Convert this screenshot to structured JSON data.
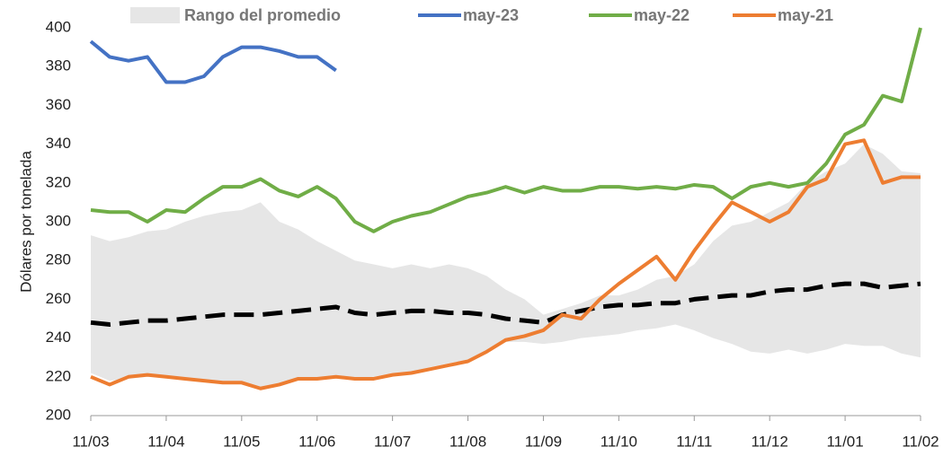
{
  "chart_data": {
    "type": "line",
    "ylabel": "Dólares por tonelada",
    "x": [
      0,
      0.25,
      0.5,
      0.75,
      1,
      1.25,
      1.5,
      1.75,
      2,
      2.25,
      2.5,
      2.75,
      3,
      3.25,
      3.5,
      3.75,
      4,
      4.25,
      4.5,
      4.75,
      5,
      5.25,
      5.5,
      5.75,
      6,
      6.25,
      6.5,
      6.75,
      7,
      7.25,
      7.5,
      7.75,
      8,
      8.25,
      8.5,
      8.75,
      9,
      9.25,
      9.5,
      9.75,
      10,
      10.25,
      10.5,
      10.75,
      11
    ],
    "xlim": [
      0,
      11
    ],
    "xticks": [
      {
        "value": 0,
        "label": "11/03"
      },
      {
        "value": 1,
        "label": "11/04"
      },
      {
        "value": 2,
        "label": "11/05"
      },
      {
        "value": 3,
        "label": "11/06"
      },
      {
        "value": 4,
        "label": "11/07"
      },
      {
        "value": 5,
        "label": "11/08"
      },
      {
        "value": 6,
        "label": "11/09"
      },
      {
        "value": 7,
        "label": "11/10"
      },
      {
        "value": 8,
        "label": "11/11"
      },
      {
        "value": 9,
        "label": "11/12"
      },
      {
        "value": 10,
        "label": "11/01"
      },
      {
        "value": 11,
        "label": "11/02"
      }
    ],
    "ylim": [
      200,
      400
    ],
    "yticks": [
      200,
      220,
      240,
      260,
      280,
      300,
      320,
      340,
      360,
      380,
      400
    ],
    "range": {
      "name": "Rango del promedio",
      "color": "#e6e6e6",
      "high": [
        293,
        290,
        292,
        295,
        296,
        300,
        303,
        305,
        306,
        310,
        300,
        296,
        290,
        285,
        280,
        278,
        276,
        278,
        276,
        278,
        276,
        272,
        265,
        260,
        252,
        255,
        258,
        262,
        262,
        265,
        270,
        272,
        278,
        290,
        298,
        300,
        305,
        310,
        320,
        326,
        330,
        340,
        335,
        326,
        325
      ],
      "low": [
        222,
        218,
        219,
        220,
        220,
        219,
        218,
        217,
        217,
        214,
        216,
        219,
        219,
        220,
        219,
        220,
        222,
        222,
        225,
        227,
        229,
        233,
        238,
        238,
        237,
        238,
        240,
        241,
        242,
        244,
        245,
        247,
        244,
        240,
        237,
        233,
        232,
        234,
        232,
        234,
        237,
        236,
        236,
        232,
        230
      ]
    },
    "series": [
      {
        "name": "may-23",
        "color": "#4472c4",
        "values": [
          393,
          385,
          383,
          385,
          372,
          372,
          375,
          385,
          390,
          390,
          388,
          385,
          385,
          378,
          null,
          null,
          null,
          null,
          null,
          null,
          null,
          null,
          null,
          null,
          null,
          null,
          null,
          null,
          null,
          null,
          null,
          null,
          null,
          null,
          null,
          null,
          null,
          null,
          null,
          null,
          null,
          null,
          null,
          null,
          null
        ]
      },
      {
        "name": "may-22",
        "color": "#70ad47",
        "values": [
          306,
          305,
          305,
          300,
          306,
          305,
          312,
          318,
          318,
          322,
          316,
          313,
          318,
          312,
          300,
          295,
          300,
          303,
          305,
          309,
          313,
          315,
          318,
          315,
          318,
          316,
          316,
          318,
          318,
          317,
          318,
          317,
          319,
          318,
          312,
          318,
          320,
          318,
          320,
          330,
          345,
          350,
          365,
          362,
          400
        ]
      },
      {
        "name": "may-21",
        "color": "#ed7d31",
        "values": [
          220,
          216,
          220,
          221,
          220,
          219,
          218,
          217,
          217,
          214,
          216,
          219,
          219,
          220,
          219,
          219,
          221,
          222,
          224,
          226,
          228,
          233,
          239,
          241,
          244,
          252,
          250,
          260,
          268,
          275,
          282,
          270,
          285,
          298,
          310,
          305,
          300,
          305,
          318,
          322,
          340,
          342,
          320,
          323,
          323
        ]
      },
      {
        "color": "#000000",
        "dash": true,
        "values": [
          248,
          247,
          248,
          249,
          249,
          250,
          251,
          252,
          252,
          252,
          253,
          254,
          255,
          256,
          253,
          252,
          253,
          254,
          254,
          253,
          253,
          252,
          250,
          249,
          248,
          252,
          254,
          256,
          257,
          257,
          258,
          258,
          260,
          261,
          262,
          262,
          264,
          265,
          265,
          267,
          268,
          268,
          266,
          267,
          268
        ]
      }
    ]
  }
}
